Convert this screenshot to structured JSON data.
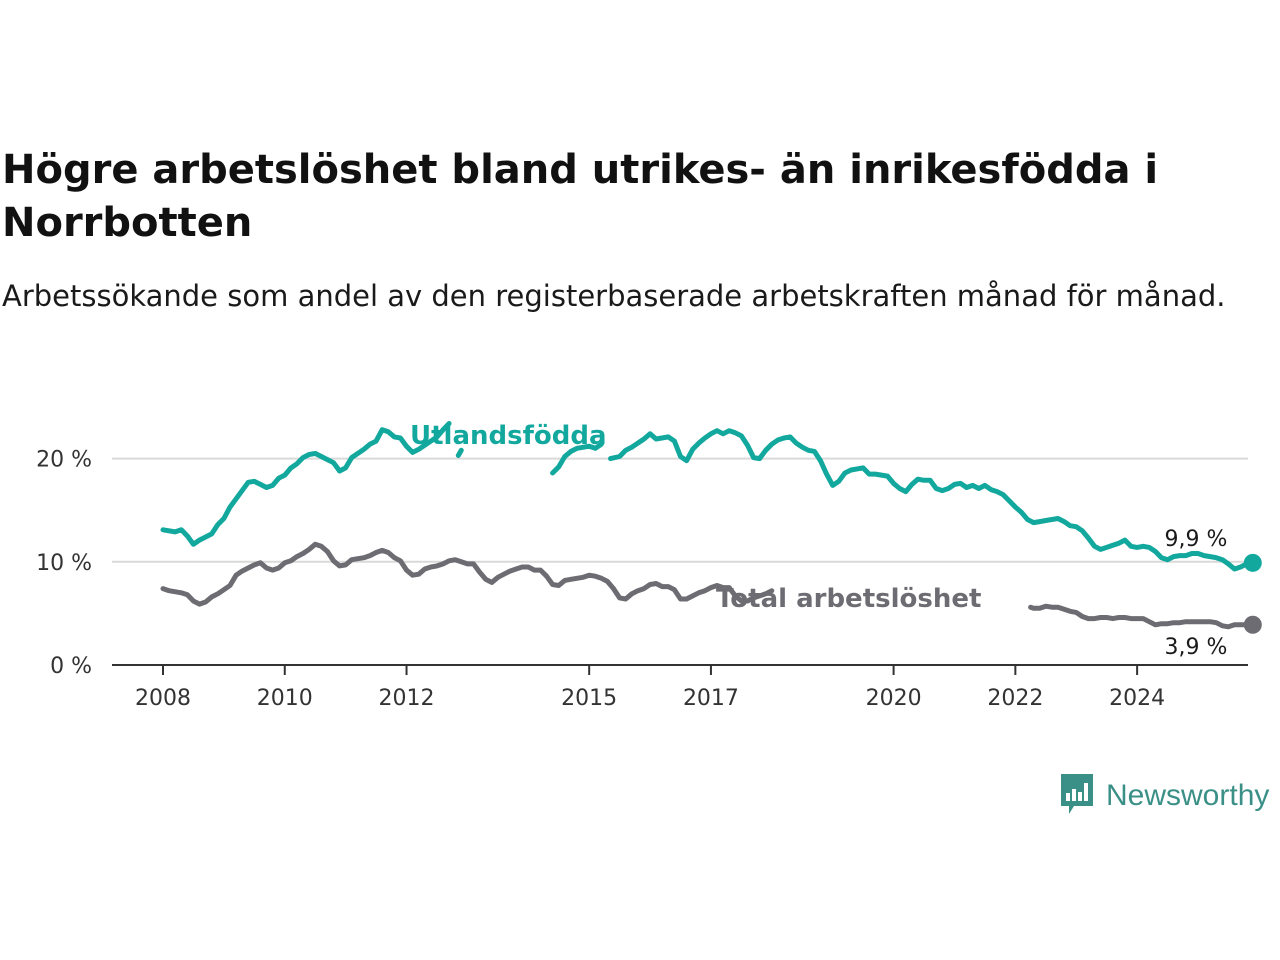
{
  "title": "Högre arbetslöshet bland utrikes- än inrikesfödda i Norrbotten",
  "subtitle": "Arbetssökande som andel av den registerbaserade arbetskraften månad för månad.",
  "brand": {
    "name": "Newsworthy",
    "icon": "bar-chart-speech-bubble-icon",
    "color": "#3a8f87"
  },
  "colors": {
    "utlandsfodda": "#13a89e",
    "total": "#6d6c72",
    "grid": "#d9d9d9",
    "axis": "#333333"
  },
  "chart_data": {
    "type": "line",
    "xlim": [
      2008,
      2025
    ],
    "ylim": [
      0,
      25
    ],
    "grid": "horizontal",
    "x_ticks": [
      2008,
      2010,
      2012,
      2015,
      2017,
      2020,
      2022,
      2024
    ],
    "y_ticks": [
      {
        "value": 0,
        "label": "0 %"
      },
      {
        "value": 10,
        "label": "10 %"
      },
      {
        "value": 20,
        "label": "20 %"
      }
    ],
    "series": [
      {
        "name": "Utlandsfödda",
        "key": "utlandsfodda",
        "end_label": "9,9 %",
        "points": [
          [
            2008.0,
            13.1
          ],
          [
            2008.2,
            12.9
          ],
          [
            2008.3,
            13.1
          ],
          [
            2008.4,
            12.5
          ],
          [
            2008.5,
            11.7
          ],
          [
            2008.6,
            12.1
          ],
          [
            2008.7,
            12.4
          ],
          [
            2008.8,
            12.7
          ],
          [
            2008.9,
            13.6
          ],
          [
            2009.0,
            14.2
          ],
          [
            2009.1,
            15.3
          ],
          [
            2009.2,
            16.1
          ],
          [
            2009.4,
            17.7
          ],
          [
            2009.5,
            17.8
          ],
          [
            2009.6,
            17.5
          ],
          [
            2009.7,
            17.2
          ],
          [
            2009.8,
            17.4
          ],
          [
            2009.9,
            18.1
          ],
          [
            2010.0,
            18.4
          ],
          [
            2010.1,
            19.1
          ],
          [
            2010.2,
            19.5
          ],
          [
            2010.3,
            20.1
          ],
          [
            2010.4,
            20.4
          ],
          [
            2010.5,
            20.5
          ],
          [
            2010.6,
            20.2
          ],
          [
            2010.7,
            19.9
          ],
          [
            2010.8,
            19.6
          ],
          [
            2010.9,
            18.8
          ],
          [
            2011.0,
            19.1
          ],
          [
            2011.1,
            20.1
          ],
          [
            2011.3,
            20.9
          ],
          [
            2011.4,
            21.4
          ],
          [
            2011.5,
            21.7
          ],
          [
            2011.6,
            22.8
          ],
          [
            2011.7,
            22.6
          ],
          [
            2011.8,
            22.1
          ],
          [
            2011.9,
            22.0
          ],
          [
            2012.0,
            21.2
          ],
          [
            2012.1,
            20.6
          ],
          [
            2012.2,
            20.9
          ],
          [
            2012.4,
            21.7
          ],
          [
            2012.5,
            22.1
          ],
          [
            2012.6,
            22.8
          ],
          [
            2012.7,
            23.4
          ],
          null,
          [
            2012.85,
            20.3
          ],
          [
            2012.9,
            20.8
          ],
          null,
          [
            2014.4,
            18.6
          ],
          [
            2014.5,
            19.2
          ],
          [
            2014.6,
            20.2
          ],
          [
            2014.7,
            20.7
          ],
          [
            2014.8,
            21.0
          ],
          [
            2015.0,
            21.2
          ],
          [
            2015.1,
            21.0
          ],
          [
            2015.2,
            21.4
          ],
          null,
          [
            2015.35,
            20.0
          ],
          [
            2015.5,
            20.2
          ],
          [
            2015.6,
            20.8
          ],
          [
            2015.7,
            21.1
          ],
          [
            2015.8,
            21.5
          ],
          [
            2015.9,
            21.9
          ],
          [
            2016.0,
            22.4
          ],
          [
            2016.1,
            21.9
          ],
          [
            2016.3,
            22.1
          ],
          [
            2016.4,
            21.7
          ],
          [
            2016.5,
            20.2
          ],
          [
            2016.6,
            19.8
          ],
          [
            2016.7,
            20.9
          ],
          [
            2016.8,
            21.5
          ],
          [
            2016.9,
            22.0
          ],
          [
            2017.0,
            22.4
          ],
          [
            2017.1,
            22.7
          ],
          [
            2017.2,
            22.4
          ],
          [
            2017.3,
            22.7
          ],
          [
            2017.4,
            22.5
          ],
          [
            2017.5,
            22.2
          ],
          [
            2017.6,
            21.3
          ],
          [
            2017.7,
            20.1
          ],
          [
            2017.8,
            20.0
          ],
          [
            2017.9,
            20.8
          ],
          [
            2018.0,
            21.4
          ],
          [
            2018.1,
            21.8
          ],
          [
            2018.2,
            22.0
          ],
          [
            2018.3,
            22.1
          ],
          [
            2018.4,
            21.5
          ],
          [
            2018.5,
            21.1
          ],
          [
            2018.6,
            20.8
          ],
          [
            2018.7,
            20.7
          ],
          [
            2018.8,
            19.8
          ],
          [
            2018.9,
            18.5
          ],
          [
            2019.0,
            17.4
          ],
          [
            2019.1,
            17.8
          ],
          [
            2019.2,
            18.6
          ],
          [
            2019.3,
            18.9
          ],
          [
            2019.4,
            19.0
          ],
          [
            2019.5,
            19.1
          ],
          [
            2019.6,
            18.5
          ],
          [
            2019.7,
            18.5
          ],
          [
            2019.8,
            18.4
          ],
          [
            2019.9,
            18.3
          ],
          [
            2020.0,
            17.6
          ],
          [
            2020.1,
            17.1
          ],
          [
            2020.2,
            16.8
          ],
          [
            2020.3,
            17.5
          ],
          [
            2020.4,
            18.0
          ],
          [
            2020.5,
            17.9
          ],
          [
            2020.6,
            17.9
          ],
          [
            2020.7,
            17.1
          ],
          [
            2020.8,
            16.9
          ],
          [
            2020.9,
            17.1
          ],
          [
            2021.0,
            17.5
          ],
          [
            2021.1,
            17.6
          ],
          [
            2021.2,
            17.2
          ],
          [
            2021.3,
            17.4
          ],
          [
            2021.4,
            17.1
          ],
          [
            2021.5,
            17.4
          ],
          [
            2021.6,
            17.0
          ],
          [
            2021.7,
            16.8
          ],
          [
            2021.8,
            16.5
          ],
          [
            2021.9,
            15.9
          ],
          [
            2022.0,
            15.3
          ],
          [
            2022.1,
            14.8
          ],
          [
            2022.2,
            14.1
          ],
          [
            2022.3,
            13.8
          ],
          [
            2022.4,
            13.9
          ],
          [
            2022.5,
            14.0
          ],
          [
            2022.6,
            14.1
          ],
          [
            2022.7,
            14.2
          ],
          [
            2022.8,
            13.9
          ],
          [
            2022.9,
            13.5
          ],
          [
            2023.0,
            13.4
          ],
          [
            2023.1,
            13.0
          ],
          [
            2023.2,
            12.3
          ],
          [
            2023.3,
            11.5
          ],
          [
            2023.4,
            11.2
          ],
          [
            2023.5,
            11.4
          ],
          [
            2023.6,
            11.6
          ],
          [
            2023.7,
            11.8
          ],
          [
            2023.8,
            12.1
          ],
          [
            2023.9,
            11.5
          ],
          [
            2024.0,
            11.4
          ],
          [
            2024.1,
            11.5
          ],
          [
            2024.2,
            11.4
          ],
          [
            2024.3,
            11.0
          ],
          [
            2024.4,
            10.4
          ],
          [
            2024.5,
            10.2
          ],
          [
            2024.6,
            10.5
          ],
          [
            2024.7,
            10.6
          ],
          [
            2024.8,
            10.6
          ],
          [
            2024.9,
            10.8
          ],
          [
            2025.0,
            10.8
          ],
          [
            2025.1,
            10.6
          ],
          [
            2025.2,
            10.5
          ],
          [
            2025.3,
            10.4
          ],
          [
            2025.4,
            10.2
          ],
          [
            2025.5,
            9.8
          ],
          [
            2025.6,
            9.3
          ],
          [
            2025.7,
            9.5
          ],
          [
            2025.8,
            9.8
          ],
          [
            2025.9,
            9.9
          ]
        ]
      },
      {
        "name": "Total arbetslöshet",
        "key": "total",
        "end_label": "3,9 %",
        "points": [
          [
            2008.0,
            7.4
          ],
          [
            2008.1,
            7.2
          ],
          [
            2008.3,
            7.0
          ],
          [
            2008.4,
            6.8
          ],
          [
            2008.5,
            6.2
          ],
          [
            2008.6,
            5.9
          ],
          [
            2008.7,
            6.1
          ],
          [
            2008.8,
            6.6
          ],
          [
            2008.9,
            6.9
          ],
          [
            2009.0,
            7.3
          ],
          [
            2009.1,
            7.7
          ],
          [
            2009.2,
            8.7
          ],
          [
            2009.3,
            9.1
          ],
          [
            2009.4,
            9.4
          ],
          [
            2009.5,
            9.7
          ],
          [
            2009.6,
            9.9
          ],
          [
            2009.7,
            9.4
          ],
          [
            2009.8,
            9.2
          ],
          [
            2009.9,
            9.4
          ],
          [
            2010.0,
            9.9
          ],
          [
            2010.1,
            10.1
          ],
          [
            2010.2,
            10.5
          ],
          [
            2010.3,
            10.8
          ],
          [
            2010.4,
            11.2
          ],
          [
            2010.5,
            11.7
          ],
          [
            2010.6,
            11.5
          ],
          [
            2010.7,
            11.0
          ],
          [
            2010.8,
            10.1
          ],
          [
            2010.9,
            9.6
          ],
          [
            2011.0,
            9.7
          ],
          [
            2011.1,
            10.2
          ],
          [
            2011.2,
            10.3
          ],
          [
            2011.3,
            10.4
          ],
          [
            2011.4,
            10.6
          ],
          [
            2011.5,
            10.9
          ],
          [
            2011.6,
            11.1
          ],
          [
            2011.7,
            10.9
          ],
          [
            2011.8,
            10.4
          ],
          [
            2011.9,
            10.1
          ],
          [
            2012.0,
            9.2
          ],
          [
            2012.1,
            8.7
          ],
          [
            2012.2,
            8.8
          ],
          [
            2012.3,
            9.3
          ],
          [
            2012.4,
            9.5
          ],
          [
            2012.5,
            9.6
          ],
          [
            2012.6,
            9.8
          ],
          [
            2012.7,
            10.1
          ],
          [
            2012.8,
            10.2
          ],
          [
            2012.9,
            10.0
          ],
          [
            2013.0,
            9.8
          ],
          [
            2013.1,
            9.8
          ],
          [
            2013.2,
            9.0
          ],
          [
            2013.3,
            8.3
          ],
          [
            2013.4,
            8.0
          ],
          [
            2013.5,
            8.5
          ],
          [
            2013.6,
            8.8
          ],
          [
            2013.7,
            9.1
          ],
          [
            2013.8,
            9.3
          ],
          [
            2013.9,
            9.5
          ],
          [
            2014.0,
            9.5
          ],
          [
            2014.1,
            9.2
          ],
          [
            2014.2,
            9.2
          ],
          [
            2014.3,
            8.6
          ],
          [
            2014.4,
            7.8
          ],
          [
            2014.5,
            7.7
          ],
          [
            2014.6,
            8.2
          ],
          [
            2014.7,
            8.3
          ],
          [
            2014.8,
            8.4
          ],
          [
            2014.9,
            8.5
          ],
          [
            2015.0,
            8.7
          ],
          [
            2015.1,
            8.6
          ],
          [
            2015.2,
            8.4
          ],
          [
            2015.3,
            8.1
          ],
          [
            2015.4,
            7.4
          ],
          [
            2015.5,
            6.5
          ],
          [
            2015.6,
            6.4
          ],
          [
            2015.7,
            6.9
          ],
          [
            2015.8,
            7.2
          ],
          [
            2015.9,
            7.4
          ],
          [
            2016.0,
            7.8
          ],
          [
            2016.1,
            7.9
          ],
          [
            2016.2,
            7.6
          ],
          [
            2016.3,
            7.6
          ],
          [
            2016.4,
            7.3
          ],
          [
            2016.5,
            6.4
          ],
          [
            2016.6,
            6.4
          ],
          [
            2016.7,
            6.7
          ],
          [
            2016.8,
            7.0
          ],
          [
            2016.9,
            7.2
          ],
          [
            2017.0,
            7.5
          ],
          [
            2017.1,
            7.7
          ],
          [
            2017.2,
            7.5
          ],
          [
            2017.3,
            7.5
          ],
          [
            2017.4,
            6.7
          ],
          [
            2017.5,
            6.2
          ],
          [
            2017.6,
            6.2
          ],
          [
            2017.7,
            6.5
          ],
          [
            2017.8,
            6.7
          ],
          [
            2017.9,
            6.9
          ],
          [
            2018.0,
            7.2
          ],
          null,
          [
            2022.25,
            5.6
          ],
          [
            2022.3,
            5.5
          ],
          [
            2022.4,
            5.5
          ],
          [
            2022.5,
            5.7
          ],
          [
            2022.6,
            5.6
          ],
          [
            2022.7,
            5.6
          ],
          [
            2022.8,
            5.4
          ],
          [
            2022.9,
            5.2
          ],
          [
            2023.0,
            5.1
          ],
          [
            2023.1,
            4.7
          ],
          [
            2023.2,
            4.5
          ],
          [
            2023.3,
            4.5
          ],
          [
            2023.4,
            4.6
          ],
          [
            2023.5,
            4.6
          ],
          [
            2023.6,
            4.5
          ],
          [
            2023.7,
            4.6
          ],
          [
            2023.8,
            4.6
          ],
          [
            2023.9,
            4.5
          ],
          [
            2024.0,
            4.5
          ],
          [
            2024.1,
            4.5
          ],
          [
            2024.2,
            4.2
          ],
          [
            2024.3,
            3.9
          ],
          [
            2024.4,
            4.0
          ],
          [
            2024.5,
            4.0
          ],
          [
            2024.6,
            4.1
          ],
          [
            2024.7,
            4.1
          ],
          [
            2024.8,
            4.2
          ],
          [
            2024.9,
            4.2
          ],
          [
            2025.0,
            4.2
          ],
          [
            2025.1,
            4.2
          ],
          [
            2025.2,
            4.2
          ],
          [
            2025.3,
            4.1
          ],
          [
            2025.4,
            3.8
          ],
          [
            2025.5,
            3.7
          ],
          [
            2025.6,
            3.9
          ],
          [
            2025.7,
            3.9
          ],
          [
            2025.8,
            3.9
          ],
          [
            2025.9,
            3.9
          ]
        ]
      }
    ]
  }
}
